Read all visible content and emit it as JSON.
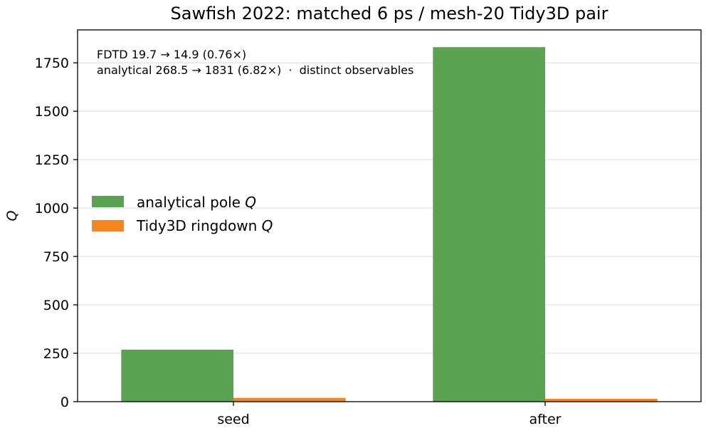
{
  "chart_data": {
    "type": "bar",
    "title": "Sawfish 2022: matched 6 ps / mesh-20 Tidy3D pair",
    "xlabel": "",
    "ylabel": "Q",
    "categories": [
      "seed",
      "after"
    ],
    "series": [
      {
        "name": "analytical pole Q",
        "values": [
          268.5,
          1831
        ],
        "color": "#5ba352"
      },
      {
        "name": "Tidy3D ringdown Q",
        "values": [
          19.7,
          14.9
        ],
        "color": "#f5861f"
      }
    ],
    "ylim": [
      0,
      1920
    ],
    "yticks": [
      0,
      250,
      500,
      750,
      1000,
      1250,
      1500,
      1750
    ],
    "grid": "horizontal",
    "legend": {
      "placement": "center-left",
      "entries": [
        {
          "prefix": "analytical pole ",
          "var": "Q"
        },
        {
          "prefix": "Tidy3D ringdown ",
          "var": "Q"
        }
      ]
    },
    "annotations": [
      "FDTD 19.7 → 14.9 (0.76×)",
      "analytical 268.5 → 1831 (6.82×)  ·  distinct observables"
    ]
  }
}
